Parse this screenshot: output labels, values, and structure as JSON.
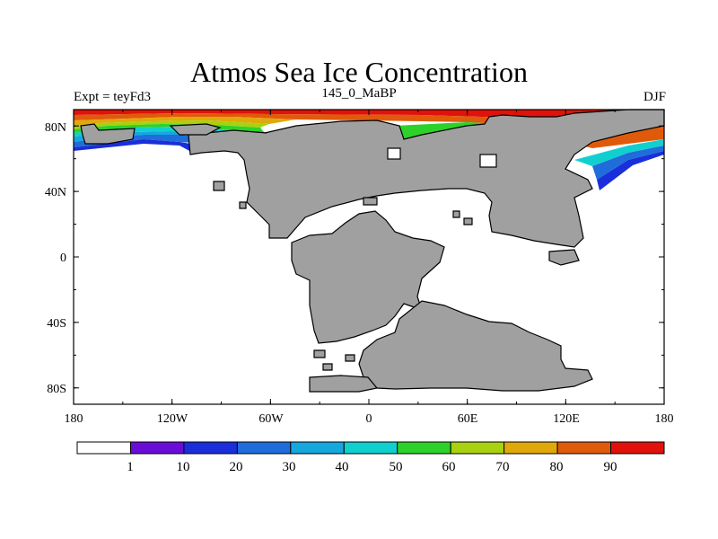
{
  "title": "Atmos Sea Ice Concentration",
  "left_label": "Expt = teyFd3",
  "center_label": "145_0_MaBP",
  "right_label": "DJF",
  "x_ticks": [
    "180",
    "120W",
    "60W",
    "0",
    "60E",
    "120E",
    "180"
  ],
  "y_ticks": [
    "80N",
    "40N",
    "0",
    "40S",
    "80S"
  ],
  "colorbar": {
    "colors": [
      "#ffffff",
      "#6a0dd8",
      "#1a2edb",
      "#1f6ddb",
      "#15a7dd",
      "#12cfcf",
      "#2ed12a",
      "#a8d20f",
      "#e0a80b",
      "#e05a0b",
      "#e0120b"
    ],
    "labels": [
      "1",
      "10",
      "20",
      "30",
      "40",
      "50",
      "60",
      "70",
      "80",
      "90"
    ]
  },
  "land_color": "#a0a0a0"
}
